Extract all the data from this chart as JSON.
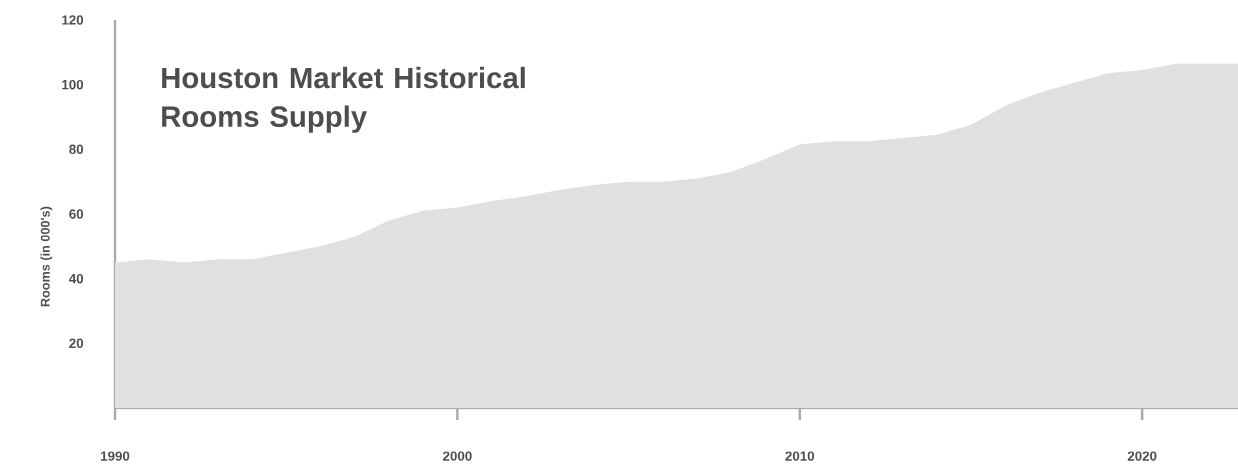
{
  "chart_data": {
    "type": "area",
    "title": "Houston Market Historical Rooms Supply",
    "ylabel": "Rooms (in 000's)",
    "x": [
      1990,
      1991,
      1992,
      1993,
      1994,
      1995,
      1996,
      1997,
      1998,
      1999,
      2000,
      2001,
      2002,
      2003,
      2004,
      2005,
      2006,
      2007,
      2008,
      2009,
      2010,
      2011,
      2012,
      2013,
      2014,
      2015,
      2016,
      2017,
      2018,
      2019,
      2020,
      2021,
      2022,
      2022.8
    ],
    "values": [
      45,
      46,
      45,
      46,
      46,
      48,
      50,
      53,
      58,
      61,
      62,
      64,
      65.5,
      67.5,
      69,
      70,
      70,
      71,
      73,
      77,
      81.5,
      82.5,
      82.5,
      83.5,
      84.5,
      87.5,
      93.5,
      97.5,
      100.5,
      103.5,
      104.5,
      106.5,
      106.5,
      106.5
    ],
    "color": "#e0e0df",
    "xlim": [
      1990,
      2022.8
    ],
    "ylim": [
      0,
      120
    ],
    "xticks": [
      1990,
      2000,
      2010,
      2020
    ],
    "yticks": [
      20,
      40,
      60,
      80,
      100,
      120
    ]
  }
}
